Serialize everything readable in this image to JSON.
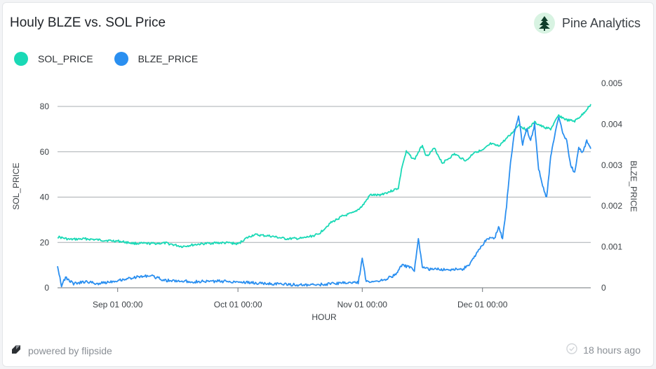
{
  "header": {
    "title": "Houly BLZE vs. SOL Price",
    "brand_name": "Pine Analytics",
    "brand_icon": "pine-tree-icon"
  },
  "footer": {
    "powered_by": "powered by flipside",
    "powered_icon": "flipside-logo-icon",
    "updated": "18 hours ago",
    "updated_icon": "check-circle-icon"
  },
  "colors": {
    "sol": "#1ad9b6",
    "blze": "#2a8ff0",
    "grid": "#a9adb2",
    "axis_text": "#3c4146"
  },
  "chart_data": {
    "type": "line",
    "title": "Houly BLZE vs. SOL Price",
    "xlabel": "HOUR",
    "ylabel_left": "SOL_PRICE",
    "ylabel_right": "BLZE_PRICE",
    "x_range": [
      "2023-08-17",
      "2023-12-28"
    ],
    "x_ticks": [
      {
        "date": "2023-09-01",
        "label": "Sep 01 00:00"
      },
      {
        "date": "2023-10-01",
        "label": "Oct 01 00:00"
      },
      {
        "date": "2023-11-01",
        "label": "Nov 01 00:00"
      },
      {
        "date": "2023-12-01",
        "label": "Dec 01 00:00"
      }
    ],
    "y_left": {
      "min": 0,
      "max": 80,
      "ticks": [
        0,
        20,
        40,
        60,
        80
      ]
    },
    "y_right": {
      "min": 0,
      "max": 0.005,
      "ticks": [
        0,
        0.001,
        0.002,
        0.003,
        0.004,
        0.005
      ],
      "tick_labels": [
        "0",
        "0.001",
        "0.002",
        "0.003",
        "0.004",
        "0.005"
      ]
    },
    "grid": "horizontal",
    "legend": "top-left",
    "series": [
      {
        "name": "SOL_PRICE",
        "axis": "left",
        "color": "#1ad9b6",
        "points": [
          [
            "2023-08-17",
            22.5
          ],
          [
            "2023-08-20",
            21.3
          ],
          [
            "2023-08-24",
            21.6
          ],
          [
            "2023-08-28",
            21.0
          ],
          [
            "2023-09-01",
            20.6
          ],
          [
            "2023-09-05",
            19.6
          ],
          [
            "2023-09-09",
            19.5
          ],
          [
            "2023-09-13",
            19.7
          ],
          [
            "2023-09-17",
            18.2
          ],
          [
            "2023-09-21",
            19.2
          ],
          [
            "2023-09-25",
            19.8
          ],
          [
            "2023-09-29",
            19.8
          ],
          [
            "2023-10-01",
            19.3
          ],
          [
            "2023-10-03",
            21.8
          ],
          [
            "2023-10-05",
            23.4
          ],
          [
            "2023-10-09",
            22.8
          ],
          [
            "2023-10-13",
            21.6
          ],
          [
            "2023-10-17",
            21.8
          ],
          [
            "2023-10-21",
            23.5
          ],
          [
            "2023-10-24",
            28.5
          ],
          [
            "2023-10-27",
            31.5
          ],
          [
            "2023-10-30",
            33.2
          ],
          [
            "2023-11-01",
            36.0
          ],
          [
            "2023-11-03",
            41.0
          ],
          [
            "2023-11-05",
            40.8
          ],
          [
            "2023-11-08",
            42.5
          ],
          [
            "2023-11-10",
            44.0
          ],
          [
            "2023-11-11",
            54.0
          ],
          [
            "2023-11-12",
            60.0
          ],
          [
            "2023-11-14",
            56.5
          ],
          [
            "2023-11-16",
            63.0
          ],
          [
            "2023-11-17",
            58.0
          ],
          [
            "2023-11-19",
            61.5
          ],
          [
            "2023-11-21",
            55.0
          ],
          [
            "2023-11-24",
            59.0
          ],
          [
            "2023-11-27",
            56.0
          ],
          [
            "2023-11-29",
            60.0
          ],
          [
            "2023-12-01",
            60.5
          ],
          [
            "2023-12-03",
            63.5
          ],
          [
            "2023-12-05",
            62.5
          ],
          [
            "2023-12-08",
            67.5
          ],
          [
            "2023-12-10",
            72.0
          ],
          [
            "2023-12-12",
            69.5
          ],
          [
            "2023-12-14",
            73.0
          ],
          [
            "2023-12-16",
            71.0
          ],
          [
            "2023-12-18",
            70.0
          ],
          [
            "2023-12-20",
            76.0
          ],
          [
            "2023-12-22",
            74.0
          ],
          [
            "2023-12-24",
            73.5
          ],
          [
            "2023-12-26",
            76.5
          ],
          [
            "2023-12-28",
            81.0
          ]
        ]
      },
      {
        "name": "BLZE_PRICE",
        "axis": "right",
        "color": "#2a8ff0",
        "points": [
          [
            "2023-08-17",
            0.00055
          ],
          [
            "2023-08-18",
            5e-05
          ],
          [
            "2023-08-19",
            0.00025
          ],
          [
            "2023-08-21",
            0.0001
          ],
          [
            "2023-08-24",
            0.00015
          ],
          [
            "2023-08-27",
            0.0001
          ],
          [
            "2023-09-01",
            0.00018
          ],
          [
            "2023-09-05",
            0.00025
          ],
          [
            "2023-09-09",
            0.0003
          ],
          [
            "2023-09-13",
            0.00018
          ],
          [
            "2023-09-20",
            0.00015
          ],
          [
            "2023-09-27",
            0.00016
          ],
          [
            "2023-10-01",
            0.00015
          ],
          [
            "2023-10-06",
            0.00011
          ],
          [
            "2023-10-12",
            9e-05
          ],
          [
            "2023-10-18",
            6e-05
          ],
          [
            "2023-10-22",
            8e-05
          ],
          [
            "2023-10-27",
            0.00012
          ],
          [
            "2023-10-31",
            0.00013
          ],
          [
            "2023-11-01",
            0.0007
          ],
          [
            "2023-11-02",
            0.00015
          ],
          [
            "2023-11-06",
            0.00018
          ],
          [
            "2023-11-09",
            0.0003
          ],
          [
            "2023-11-11",
            0.00055
          ],
          [
            "2023-11-13",
            0.0005
          ],
          [
            "2023-11-14",
            0.0004
          ],
          [
            "2023-11-15",
            0.0012
          ],
          [
            "2023-11-16",
            0.0005
          ],
          [
            "2023-11-18",
            0.00045
          ],
          [
            "2023-11-22",
            0.00045
          ],
          [
            "2023-11-26",
            0.00045
          ],
          [
            "2023-11-28",
            0.0006
          ],
          [
            "2023-11-30",
            0.0009
          ],
          [
            "2023-12-02",
            0.0012
          ],
          [
            "2023-12-04",
            0.0012
          ],
          [
            "2023-12-05",
            0.0015
          ],
          [
            "2023-12-06",
            0.0012
          ],
          [
            "2023-12-07",
            0.002
          ],
          [
            "2023-12-08",
            0.0031
          ],
          [
            "2023-12-09",
            0.0038
          ],
          [
            "2023-12-10",
            0.0042
          ],
          [
            "2023-12-11",
            0.0035
          ],
          [
            "2023-12-12",
            0.0039
          ],
          [
            "2023-12-13",
            0.0036
          ],
          [
            "2023-12-14",
            0.004
          ],
          [
            "2023-12-15",
            0.0029
          ],
          [
            "2023-12-16",
            0.0025
          ],
          [
            "2023-12-17",
            0.0022
          ],
          [
            "2023-12-18",
            0.0032
          ],
          [
            "2023-12-19",
            0.0037
          ],
          [
            "2023-12-20",
            0.0042
          ],
          [
            "2023-12-21",
            0.0038
          ],
          [
            "2023-12-22",
            0.0036
          ],
          [
            "2023-12-23",
            0.003
          ],
          [
            "2023-12-24",
            0.0028
          ],
          [
            "2023-12-25",
            0.0034
          ],
          [
            "2023-12-26",
            0.0033
          ],
          [
            "2023-12-27",
            0.0036
          ],
          [
            "2023-12-28",
            0.0034
          ]
        ]
      }
    ]
  }
}
